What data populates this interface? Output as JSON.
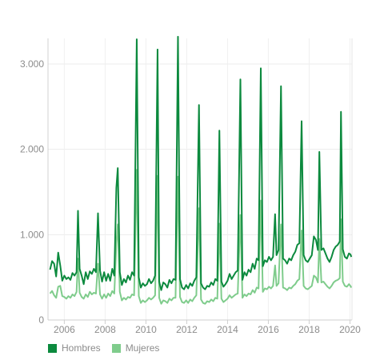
{
  "chart_data": {
    "type": "line",
    "title": "",
    "xlabel": "",
    "ylabel": "",
    "xlim": [
      2005.2,
      2020.1
    ],
    "ylim": [
      0,
      3300
    ],
    "grid": true,
    "legend_position": "bottom-left",
    "x_ticks": [
      {
        "value": 2006,
        "label": "2006"
      },
      {
        "value": 2008,
        "label": "2008"
      },
      {
        "value": 2010,
        "label": "2010"
      },
      {
        "value": 2012,
        "label": "2012"
      },
      {
        "value": 2014,
        "label": "2014"
      },
      {
        "value": 2016,
        "label": "2016"
      },
      {
        "value": 2018,
        "label": "2018"
      },
      {
        "value": 2020,
        "label": "2020"
      }
    ],
    "y_ticks": [
      {
        "value": 0,
        "label": "0"
      },
      {
        "value": 1000,
        "label": "1.000"
      },
      {
        "value": 2000,
        "label": "2.000"
      },
      {
        "value": 3000,
        "label": "3.000"
      }
    ],
    "series": [
      {
        "name": "Hombres",
        "color": "#0c8a3e",
        "points": [
          [
            2005.3,
            590
          ],
          [
            2005.4,
            690
          ],
          [
            2005.5,
            660
          ],
          [
            2005.6,
            510
          ],
          [
            2005.7,
            790
          ],
          [
            2005.8,
            640
          ],
          [
            2005.9,
            460
          ],
          [
            2006.0,
            520
          ],
          [
            2006.1,
            480
          ],
          [
            2006.2,
            500
          ],
          [
            2006.3,
            470
          ],
          [
            2006.4,
            550
          ],
          [
            2006.5,
            520
          ],
          [
            2006.6,
            560
          ],
          [
            2006.67,
            1280
          ],
          [
            2006.75,
            600
          ],
          [
            2006.85,
            520
          ],
          [
            2006.95,
            420
          ],
          [
            2007.05,
            560
          ],
          [
            2007.15,
            480
          ],
          [
            2007.25,
            570
          ],
          [
            2007.35,
            540
          ],
          [
            2007.45,
            600
          ],
          [
            2007.55,
            560
          ],
          [
            2007.65,
            1250
          ],
          [
            2007.75,
            580
          ],
          [
            2007.85,
            450
          ],
          [
            2007.95,
            560
          ],
          [
            2008.05,
            460
          ],
          [
            2008.15,
            540
          ],
          [
            2008.25,
            460
          ],
          [
            2008.35,
            600
          ],
          [
            2008.45,
            520
          ],
          [
            2008.55,
            1550
          ],
          [
            2008.62,
            1780
          ],
          [
            2008.72,
            560
          ],
          [
            2008.82,
            410
          ],
          [
            2008.92,
            480
          ],
          [
            2009.02,
            440
          ],
          [
            2009.12,
            520
          ],
          [
            2009.22,
            470
          ],
          [
            2009.32,
            560
          ],
          [
            2009.42,
            520
          ],
          [
            2009.55,
            3290
          ],
          [
            2009.65,
            500
          ],
          [
            2009.75,
            380
          ],
          [
            2009.85,
            430
          ],
          [
            2009.95,
            400
          ],
          [
            2010.05,
            420
          ],
          [
            2010.15,
            480
          ],
          [
            2010.25,
            430
          ],
          [
            2010.35,
            460
          ],
          [
            2010.45,
            520
          ],
          [
            2010.57,
            3170
          ],
          [
            2010.65,
            450
          ],
          [
            2010.75,
            350
          ],
          [
            2010.85,
            440
          ],
          [
            2010.95,
            420
          ],
          [
            2011.05,
            380
          ],
          [
            2011.15,
            470
          ],
          [
            2011.25,
            430
          ],
          [
            2011.35,
            480
          ],
          [
            2011.45,
            470
          ],
          [
            2011.57,
            3320
          ],
          [
            2011.67,
            480
          ],
          [
            2011.77,
            380
          ],
          [
            2011.87,
            360
          ],
          [
            2011.97,
            410
          ],
          [
            2012.07,
            370
          ],
          [
            2012.17,
            430
          ],
          [
            2012.27,
            400
          ],
          [
            2012.37,
            460
          ],
          [
            2012.47,
            500
          ],
          [
            2012.6,
            2520
          ],
          [
            2012.7,
            430
          ],
          [
            2012.8,
            380
          ],
          [
            2012.9,
            360
          ],
          [
            2013.0,
            400
          ],
          [
            2013.1,
            390
          ],
          [
            2013.2,
            440
          ],
          [
            2013.3,
            410
          ],
          [
            2013.4,
            480
          ],
          [
            2013.5,
            460
          ],
          [
            2013.6,
            2220
          ],
          [
            2013.7,
            450
          ],
          [
            2013.8,
            390
          ],
          [
            2013.9,
            420
          ],
          [
            2014.0,
            460
          ],
          [
            2014.1,
            540
          ],
          [
            2014.2,
            480
          ],
          [
            2014.3,
            520
          ],
          [
            2014.4,
            560
          ],
          [
            2014.5,
            580
          ],
          [
            2014.63,
            2820
          ],
          [
            2014.73,
            470
          ],
          [
            2014.83,
            560
          ],
          [
            2014.93,
            520
          ],
          [
            2015.03,
            590
          ],
          [
            2015.13,
            560
          ],
          [
            2015.23,
            660
          ],
          [
            2015.33,
            600
          ],
          [
            2015.43,
            720
          ],
          [
            2015.52,
            700
          ],
          [
            2015.63,
            2950
          ],
          [
            2015.73,
            630
          ],
          [
            2015.83,
            700
          ],
          [
            2015.93,
            680
          ],
          [
            2016.03,
            740
          ],
          [
            2016.13,
            700
          ],
          [
            2016.23,
            740
          ],
          [
            2016.33,
            1240
          ],
          [
            2016.4,
            760
          ],
          [
            2016.5,
            820
          ],
          [
            2016.62,
            2740
          ],
          [
            2016.72,
            720
          ],
          [
            2016.82,
            700
          ],
          [
            2016.92,
            660
          ],
          [
            2017.02,
            720
          ],
          [
            2017.12,
            700
          ],
          [
            2017.22,
            760
          ],
          [
            2017.32,
            800
          ],
          [
            2017.42,
            880
          ],
          [
            2017.52,
            900
          ],
          [
            2017.63,
            2330
          ],
          [
            2017.73,
            760
          ],
          [
            2017.83,
            700
          ],
          [
            2017.93,
            680
          ],
          [
            2018.03,
            720
          ],
          [
            2018.13,
            760
          ],
          [
            2018.23,
            980
          ],
          [
            2018.33,
            940
          ],
          [
            2018.43,
            820
          ],
          [
            2018.5,
            1970
          ],
          [
            2018.6,
            820
          ],
          [
            2018.7,
            840
          ],
          [
            2018.8,
            780
          ],
          [
            2018.9,
            720
          ],
          [
            2019.0,
            680
          ],
          [
            2019.1,
            740
          ],
          [
            2019.2,
            820
          ],
          [
            2019.3,
            860
          ],
          [
            2019.4,
            880
          ],
          [
            2019.5,
            920
          ],
          [
            2019.56,
            2440
          ],
          [
            2019.65,
            830
          ],
          [
            2019.75,
            740
          ],
          [
            2019.85,
            720
          ],
          [
            2019.95,
            780
          ],
          [
            2020.02,
            770
          ],
          [
            2020.07,
            740
          ]
        ]
      },
      {
        "name": "Mujeres",
        "color": "#7fcc8c",
        "points": [
          [
            2005.3,
            310
          ],
          [
            2005.4,
            340
          ],
          [
            2005.5,
            290
          ],
          [
            2005.6,
            260
          ],
          [
            2005.7,
            390
          ],
          [
            2005.8,
            400
          ],
          [
            2005.9,
            280
          ],
          [
            2006.0,
            270
          ],
          [
            2006.1,
            250
          ],
          [
            2006.2,
            280
          ],
          [
            2006.3,
            260
          ],
          [
            2006.4,
            300
          ],
          [
            2006.5,
            280
          ],
          [
            2006.6,
            330
          ],
          [
            2006.67,
            720
          ],
          [
            2006.75,
            320
          ],
          [
            2006.85,
            270
          ],
          [
            2006.95,
            250
          ],
          [
            2007.05,
            300
          ],
          [
            2007.15,
            270
          ],
          [
            2007.25,
            330
          ],
          [
            2007.35,
            300
          ],
          [
            2007.45,
            320
          ],
          [
            2007.55,
            310
          ],
          [
            2007.65,
            660
          ],
          [
            2007.75,
            300
          ],
          [
            2007.85,
            250
          ],
          [
            2007.95,
            300
          ],
          [
            2008.05,
            260
          ],
          [
            2008.15,
            310
          ],
          [
            2008.25,
            280
          ],
          [
            2008.35,
            340
          ],
          [
            2008.45,
            310
          ],
          [
            2008.55,
            900
          ],
          [
            2008.62,
            1120
          ],
          [
            2008.72,
            330
          ],
          [
            2008.82,
            230
          ],
          [
            2008.92,
            260
          ],
          [
            2009.02,
            240
          ],
          [
            2009.12,
            270
          ],
          [
            2009.22,
            260
          ],
          [
            2009.32,
            300
          ],
          [
            2009.42,
            290
          ],
          [
            2009.55,
            1760
          ],
          [
            2009.65,
            280
          ],
          [
            2009.75,
            200
          ],
          [
            2009.85,
            230
          ],
          [
            2009.95,
            210
          ],
          [
            2010.05,
            230
          ],
          [
            2010.15,
            260
          ],
          [
            2010.25,
            240
          ],
          [
            2010.35,
            260
          ],
          [
            2010.45,
            290
          ],
          [
            2010.57,
            1690
          ],
          [
            2010.65,
            260
          ],
          [
            2010.75,
            190
          ],
          [
            2010.85,
            230
          ],
          [
            2010.95,
            220
          ],
          [
            2011.05,
            200
          ],
          [
            2011.15,
            250
          ],
          [
            2011.25,
            230
          ],
          [
            2011.35,
            260
          ],
          [
            2011.45,
            260
          ],
          [
            2011.57,
            1680
          ],
          [
            2011.67,
            270
          ],
          [
            2011.77,
            210
          ],
          [
            2011.87,
            200
          ],
          [
            2011.97,
            230
          ],
          [
            2012.07,
            200
          ],
          [
            2012.17,
            240
          ],
          [
            2012.27,
            220
          ],
          [
            2012.37,
            260
          ],
          [
            2012.47,
            290
          ],
          [
            2012.6,
            1310
          ],
          [
            2012.7,
            240
          ],
          [
            2012.8,
            200
          ],
          [
            2012.9,
            190
          ],
          [
            2013.0,
            220
          ],
          [
            2013.1,
            210
          ],
          [
            2013.2,
            240
          ],
          [
            2013.3,
            220
          ],
          [
            2013.4,
            260
          ],
          [
            2013.5,
            250
          ],
          [
            2013.6,
            1130
          ],
          [
            2013.7,
            250
          ],
          [
            2013.8,
            210
          ],
          [
            2013.9,
            230
          ],
          [
            2014.0,
            250
          ],
          [
            2014.1,
            290
          ],
          [
            2014.2,
            260
          ],
          [
            2014.3,
            280
          ],
          [
            2014.4,
            300
          ],
          [
            2014.5,
            310
          ],
          [
            2014.63,
            1230
          ],
          [
            2014.73,
            260
          ],
          [
            2014.83,
            300
          ],
          [
            2014.93,
            280
          ],
          [
            2015.03,
            310
          ],
          [
            2015.13,
            300
          ],
          [
            2015.23,
            350
          ],
          [
            2015.33,
            320
          ],
          [
            2015.43,
            380
          ],
          [
            2015.52,
            370
          ],
          [
            2015.63,
            1400
          ],
          [
            2015.73,
            330
          ],
          [
            2015.83,
            370
          ],
          [
            2015.93,
            360
          ],
          [
            2016.03,
            390
          ],
          [
            2016.13,
            370
          ],
          [
            2016.23,
            400
          ],
          [
            2016.33,
            640
          ],
          [
            2016.4,
            400
          ],
          [
            2016.5,
            430
          ],
          [
            2016.62,
            1120
          ],
          [
            2016.72,
            380
          ],
          [
            2016.82,
            370
          ],
          [
            2016.92,
            350
          ],
          [
            2017.02,
            380
          ],
          [
            2017.12,
            370
          ],
          [
            2017.22,
            400
          ],
          [
            2017.32,
            420
          ],
          [
            2017.42,
            460
          ],
          [
            2017.52,
            480
          ],
          [
            2017.63,
            1050
          ],
          [
            2017.73,
            400
          ],
          [
            2017.83,
            370
          ],
          [
            2017.93,
            360
          ],
          [
            2018.03,
            380
          ],
          [
            2018.13,
            400
          ],
          [
            2018.23,
            520
          ],
          [
            2018.33,
            500
          ],
          [
            2018.43,
            440
          ],
          [
            2018.5,
            950
          ],
          [
            2018.6,
            440
          ],
          [
            2018.7,
            450
          ],
          [
            2018.8,
            420
          ],
          [
            2018.9,
            390
          ],
          [
            2019.0,
            370
          ],
          [
            2019.1,
            400
          ],
          [
            2019.2,
            440
          ],
          [
            2019.3,
            460
          ],
          [
            2019.4,
            470
          ],
          [
            2019.5,
            490
          ],
          [
            2019.56,
            1180
          ],
          [
            2019.65,
            450
          ],
          [
            2019.75,
            400
          ],
          [
            2019.85,
            390
          ],
          [
            2019.95,
            420
          ],
          [
            2020.02,
            400
          ],
          [
            2020.07,
            380
          ]
        ]
      }
    ]
  }
}
